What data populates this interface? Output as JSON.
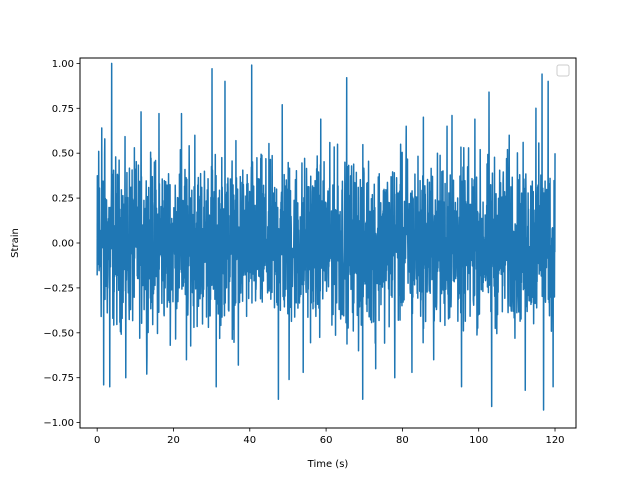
{
  "chart_data": {
    "type": "line",
    "title": "",
    "xlabel": "Time (s)",
    "ylabel": "Strain",
    "xlim": [
      -4.5,
      125.5
    ],
    "ylim": [
      -1.03,
      1.03
    ],
    "x_ticks": [
      0,
      20,
      40,
      60,
      80,
      100,
      120
    ],
    "x_tick_labels": [
      "0",
      "20",
      "40",
      "60",
      "80",
      "100",
      "120"
    ],
    "y_ticks": [
      1.0,
      0.75,
      0.5,
      0.25,
      0.0,
      -0.25,
      -0.5,
      -0.75,
      -1.0
    ],
    "y_tick_labels": [
      "1.00",
      "0.75",
      "0.50",
      "0.25",
      "0.00",
      "−0.25",
      "−0.50",
      "−0.75",
      "−1.00"
    ],
    "grid": false,
    "legend": {
      "placement": "upper right",
      "entries": []
    },
    "series": [
      {
        "color": "#1f77b4",
        "x_range": [
          0,
          120
        ],
        "sample_count": 2400,
        "envelope_peaks": [
          [
            0.0,
            -0.18
          ],
          [
            0.4,
            0.51
          ],
          [
            1.2,
            0.64
          ],
          [
            1.7,
            -0.79
          ],
          [
            2.0,
            0.58
          ],
          [
            3.3,
            -0.8
          ],
          [
            3.8,
            1.0
          ],
          [
            7.5,
            -0.75
          ],
          [
            11.5,
            0.73
          ],
          [
            13.0,
            -0.73
          ],
          [
            16.2,
            0.72
          ],
          [
            22.1,
            0.72
          ],
          [
            23.4,
            -0.65
          ],
          [
            25.6,
            0.6
          ],
          [
            30.1,
            0.97
          ],
          [
            31.2,
            -0.8
          ],
          [
            33.5,
            0.9
          ],
          [
            37.0,
            -0.68
          ],
          [
            40.5,
            0.99
          ],
          [
            47.5,
            -0.87
          ],
          [
            48.5,
            0.77
          ],
          [
            50.3,
            -0.76
          ],
          [
            54.0,
            -0.72
          ],
          [
            58.6,
            0.69
          ],
          [
            63.0,
            0.55
          ],
          [
            65.4,
            0.92
          ],
          [
            68.5,
            -0.6
          ],
          [
            69.6,
            -0.87
          ],
          [
            73.0,
            -0.7
          ],
          [
            78.0,
            -0.75
          ],
          [
            81.0,
            0.65
          ],
          [
            82.5,
            -0.72
          ],
          [
            85.5,
            0.7
          ],
          [
            88.2,
            -0.65
          ],
          [
            91.7,
            0.65
          ],
          [
            93.0,
            0.71
          ],
          [
            95.5,
            -0.8
          ],
          [
            99.0,
            0.69
          ],
          [
            102.7,
            0.84
          ],
          [
            103.4,
            -0.91
          ],
          [
            108.0,
            0.6
          ],
          [
            112.2,
            -0.82
          ],
          [
            115.0,
            0.75
          ],
          [
            116.6,
            0.94
          ],
          [
            117.0,
            -0.93
          ],
          [
            118.2,
            0.9
          ],
          [
            119.5,
            -0.8
          ],
          [
            120.0,
            0.5
          ]
        ],
        "typical_amplitude": 0.42
      }
    ]
  }
}
